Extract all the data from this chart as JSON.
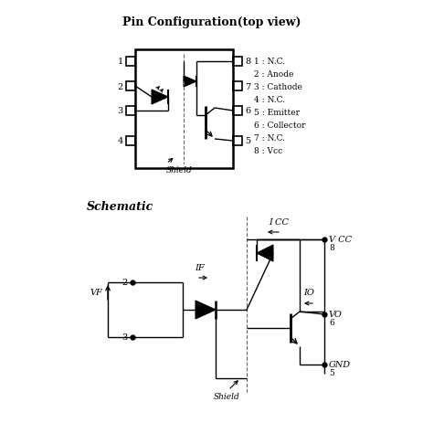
{
  "title1": "Pin Configuration(top view)",
  "title2": "Schematic",
  "pin_labels": [
    "1 : N.C.",
    "2 : Anode",
    "3 : Cathode",
    "4 : N.C.",
    "5 : Emitter",
    "6 : Collector",
    "7 : N.C.",
    "8 : Vcc"
  ],
  "bg_color": "#ffffff",
  "lc": "#000000",
  "tc": "#000000"
}
